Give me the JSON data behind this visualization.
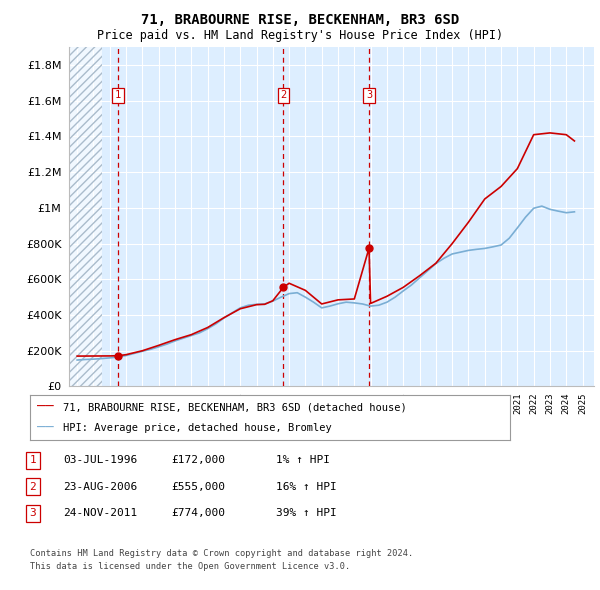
{
  "title": "71, BRABOURNE RISE, BECKENHAM, BR3 6SD",
  "subtitle": "Price paid vs. HM Land Registry's House Price Index (HPI)",
  "legend_line1": "71, BRABOURNE RISE, BECKENHAM, BR3 6SD (detached house)",
  "legend_line2": "HPI: Average price, detached house, Bromley",
  "footer1": "Contains HM Land Registry data © Crown copyright and database right 2024.",
  "footer2": "This data is licensed under the Open Government Licence v3.0.",
  "transactions": [
    {
      "num": 1,
      "date": "03-JUL-1996",
      "price": 172000,
      "pct": "1% ↑ HPI",
      "year": 1996.5
    },
    {
      "num": 2,
      "date": "23-AUG-2006",
      "price": 555000,
      "pct": "16% ↑ HPI",
      "year": 2006.65
    },
    {
      "num": 3,
      "date": "24-NOV-2011",
      "price": 774000,
      "pct": "39% ↑ HPI",
      "year": 2011.9
    }
  ],
  "hpi_color": "#7aaed4",
  "price_color": "#cc0000",
  "dashed_color": "#cc0000",
  "bg_color": "#ddeeff",
  "ylim": [
    0,
    1900000
  ],
  "yticks": [
    0,
    200000,
    400000,
    600000,
    800000,
    1000000,
    1200000,
    1400000,
    1600000,
    1800000
  ],
  "xlim_start": 1993.5,
  "xlim_end": 2025.7,
  "hatch_end": 1995.5,
  "hpi_years": [
    1994.0,
    1994.5,
    1995.0,
    1995.5,
    1996.0,
    1996.5,
    1997.0,
    1997.5,
    1998.0,
    1998.5,
    1999.0,
    1999.5,
    2000.0,
    2000.5,
    2001.0,
    2001.5,
    2002.0,
    2002.5,
    2003.0,
    2003.5,
    2004.0,
    2004.5,
    2005.0,
    2005.5,
    2006.0,
    2006.5,
    2007.0,
    2007.5,
    2008.0,
    2008.5,
    2009.0,
    2009.5,
    2010.0,
    2010.5,
    2011.0,
    2011.5,
    2012.0,
    2012.5,
    2013.0,
    2013.5,
    2014.0,
    2014.5,
    2015.0,
    2015.5,
    2016.0,
    2016.5,
    2017.0,
    2017.5,
    2018.0,
    2018.5,
    2019.0,
    2019.5,
    2020.0,
    2020.5,
    2021.0,
    2021.5,
    2022.0,
    2022.5,
    2023.0,
    2023.5,
    2024.0,
    2024.5
  ],
  "hpi_vals": [
    148000,
    151000,
    153000,
    156000,
    160000,
    165000,
    173000,
    185000,
    197000,
    208000,
    222000,
    237000,
    255000,
    270000,
    285000,
    300000,
    323000,
    350000,
    383000,
    412000,
    440000,
    455000,
    460000,
    462000,
    478000,
    500000,
    520000,
    525000,
    500000,
    472000,
    440000,
    450000,
    463000,
    472000,
    468000,
    462000,
    450000,
    455000,
    472000,
    500000,
    535000,
    568000,
    608000,
    648000,
    688000,
    718000,
    742000,
    752000,
    762000,
    768000,
    773000,
    782000,
    792000,
    830000,
    888000,
    948000,
    998000,
    1010000,
    992000,
    982000,
    973000,
    978000
  ],
  "price_years": [
    1994.0,
    1995.0,
    1996.0,
    1996.5,
    1997.0,
    1998.0,
    1999.0,
    2000.0,
    2001.0,
    2002.0,
    2003.0,
    2004.0,
    2005.0,
    2005.5,
    2006.0,
    2006.65,
    2007.0,
    2008.0,
    2009.0,
    2010.0,
    2011.0,
    2011.9,
    2012.0,
    2013.0,
    2014.0,
    2015.0,
    2016.0,
    2017.0,
    2018.0,
    2019.0,
    2020.0,
    2021.0,
    2022.0,
    2023.0,
    2024.0,
    2024.5
  ],
  "price_vals": [
    170000,
    170500,
    171000,
    172000,
    178000,
    200000,
    230000,
    262000,
    290000,
    330000,
    385000,
    435000,
    458000,
    460000,
    480000,
    555000,
    578000,
    538000,
    462000,
    485000,
    490000,
    774000,
    465000,
    505000,
    555000,
    620000,
    690000,
    800000,
    920000,
    1050000,
    1120000,
    1220000,
    1410000,
    1420000,
    1410000,
    1375000
  ]
}
